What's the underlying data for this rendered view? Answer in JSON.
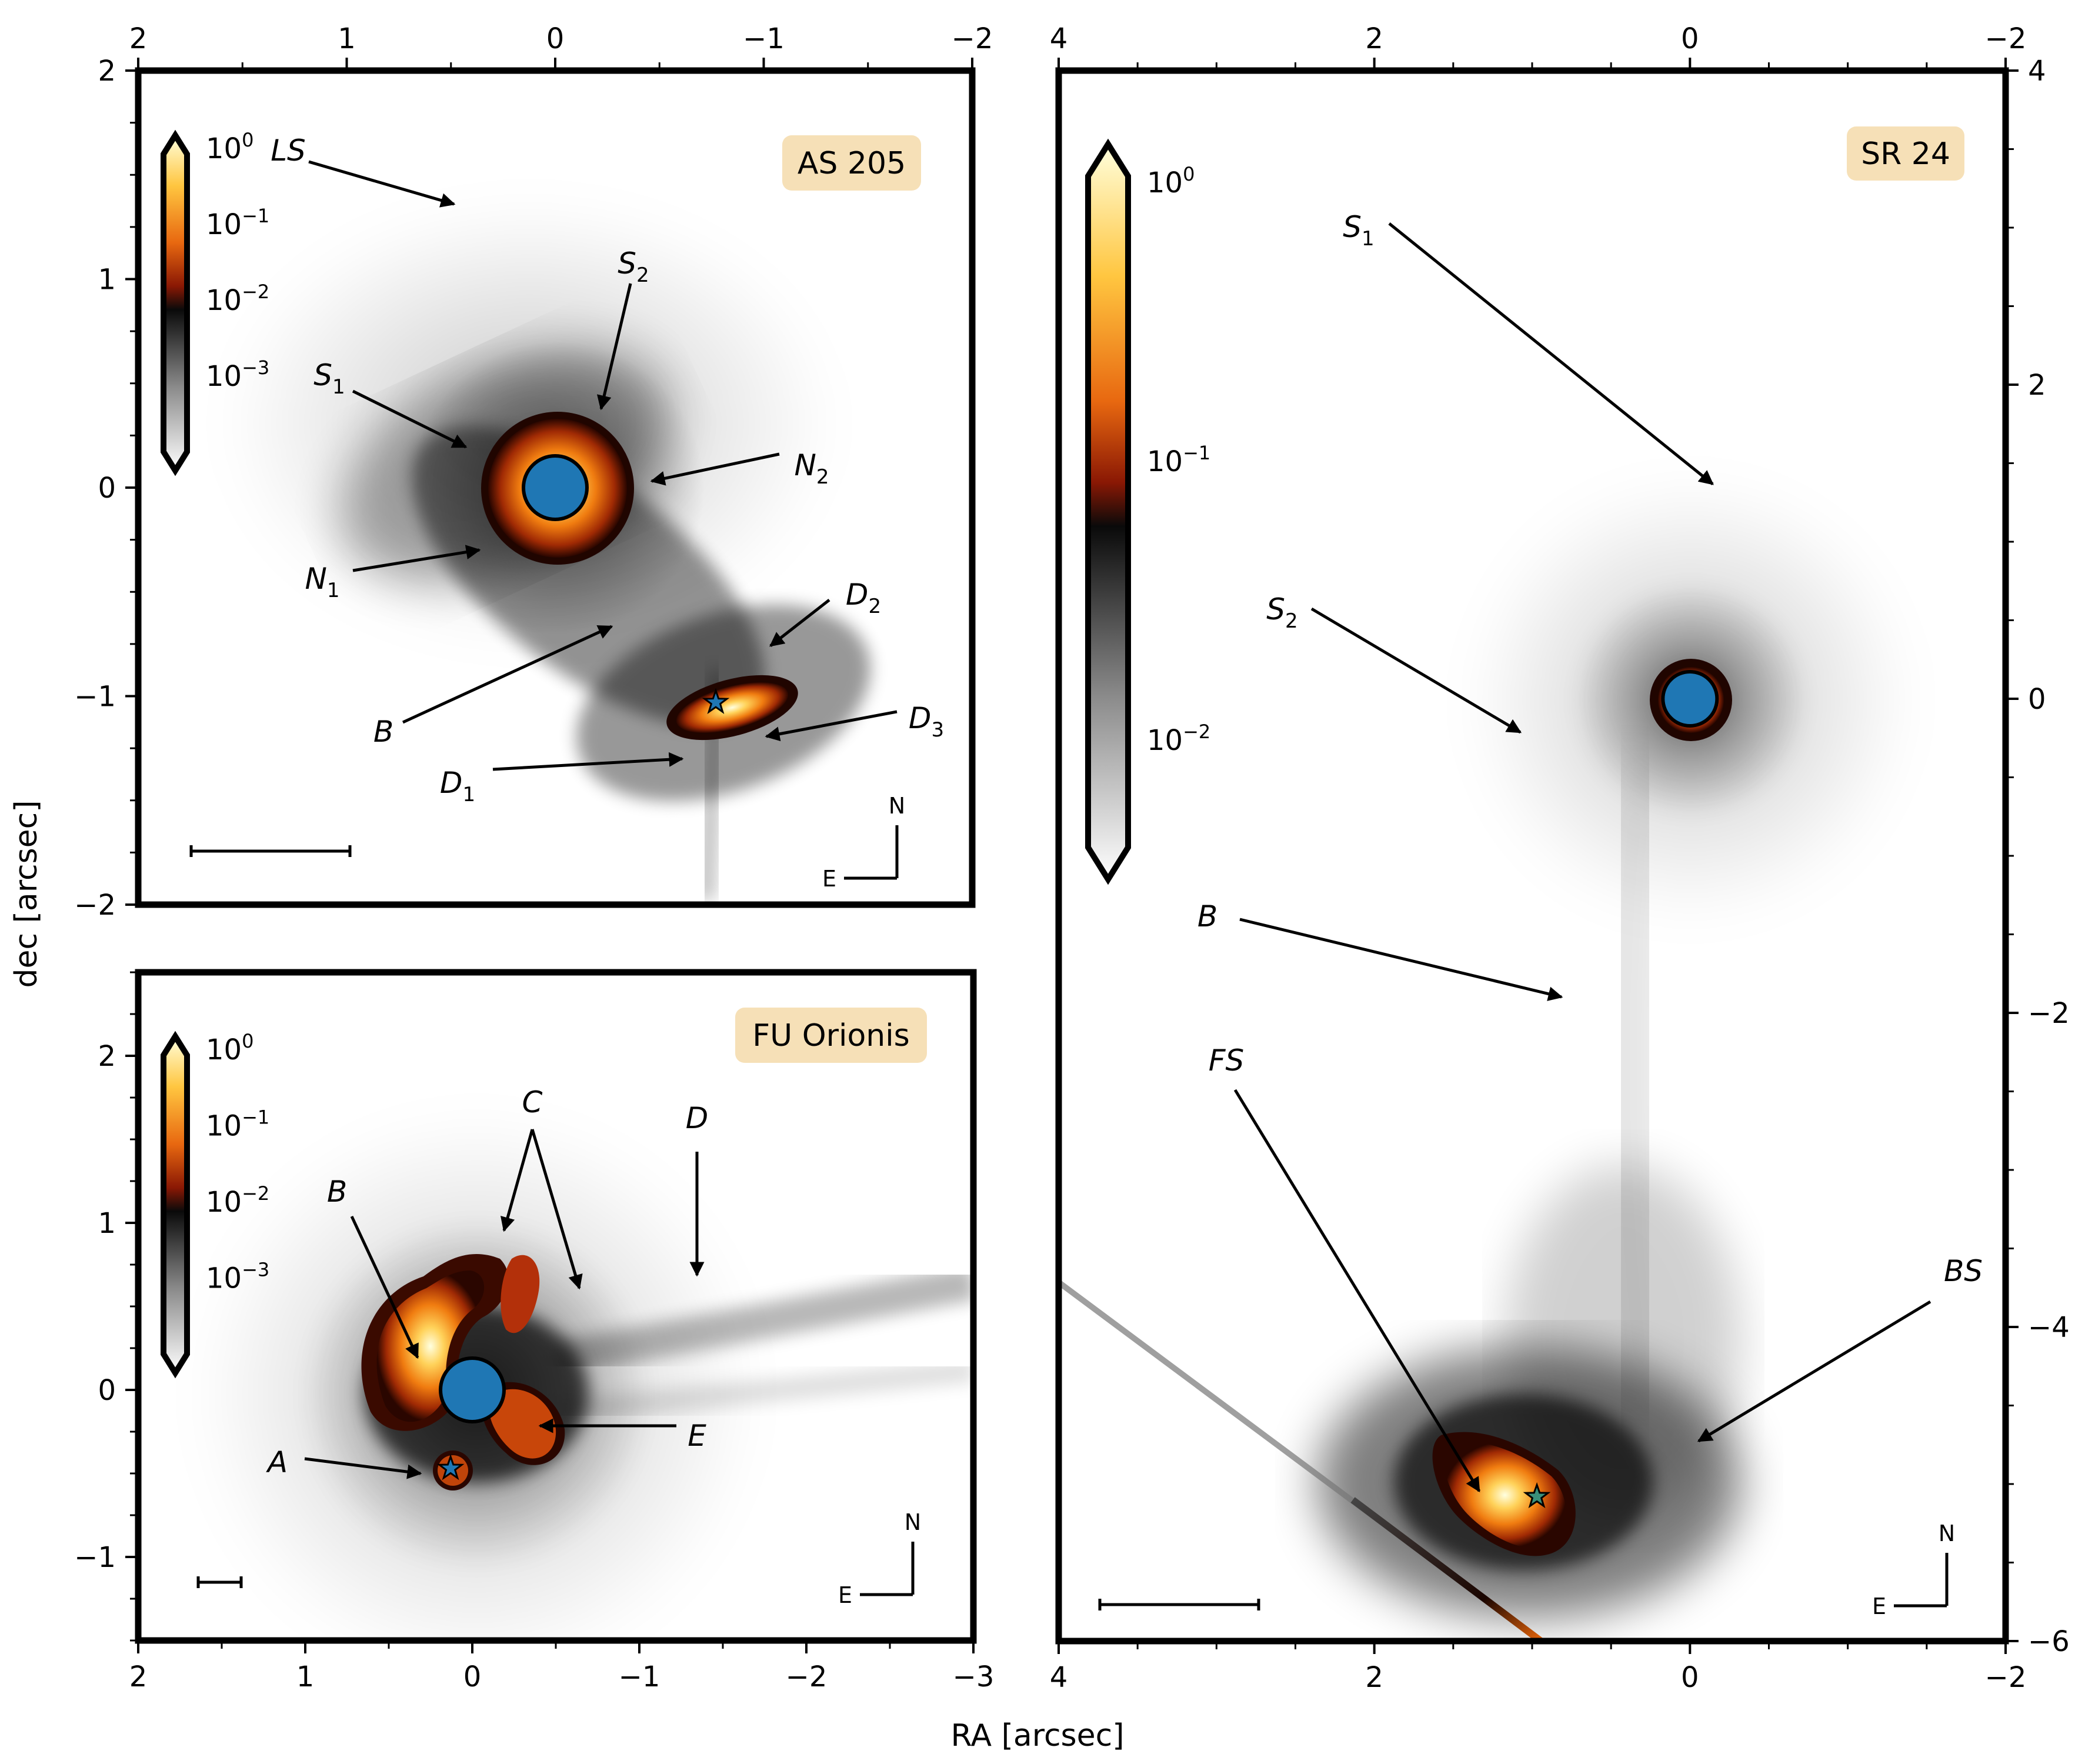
{
  "figure": {
    "xlabel": "RA [arcsec]",
    "ylabel": "dec [arcsec]"
  },
  "chart_data": [
    {
      "type": "heatmap",
      "name": "AS 205",
      "badge": "AS 205",
      "xlim": [
        2,
        -2
      ],
      "ylim": [
        -2,
        2
      ],
      "x_ticks": [
        "2",
        "1",
        "0",
        "-1",
        "-2"
      ],
      "y_ticks": [
        "2",
        "1",
        "0",
        "-1",
        "-2"
      ],
      "colorbar": {
        "scale": "log",
        "labels": [
          {
            "base": "10",
            "exp": "0"
          },
          {
            "base": "10",
            "exp": "−1"
          },
          {
            "base": "10",
            "exp": "−2"
          },
          {
            "base": "10",
            "exp": "−3"
          }
        ]
      },
      "sources": [
        {
          "marker": "circle",
          "x": 0.0,
          "y": 0.0
        },
        {
          "marker": "star",
          "x": -0.77,
          "y": -1.03
        }
      ],
      "annotations": [
        {
          "text": "LS",
          "sub": ""
        },
        {
          "text": "S",
          "sub": "2"
        },
        {
          "text": "S",
          "sub": "1"
        },
        {
          "text": "N",
          "sub": "2"
        },
        {
          "text": "N",
          "sub": "1"
        },
        {
          "text": "D",
          "sub": "2"
        },
        {
          "text": "B",
          "sub": ""
        },
        {
          "text": "D",
          "sub": "3"
        },
        {
          "text": "D",
          "sub": "1"
        }
      ],
      "compass": {
        "north": "N",
        "east": "E"
      }
    },
    {
      "type": "heatmap",
      "name": "FU Orionis",
      "badge": "FU Orionis",
      "xlim": [
        2,
        -3
      ],
      "ylim": [
        -1.5,
        2.5
      ],
      "x_ticks": [
        "2",
        "1",
        "0",
        "-1",
        "-2",
        "-3"
      ],
      "y_ticks": [
        "2",
        "1",
        "0",
        "-1"
      ],
      "colorbar": {
        "scale": "log",
        "labels": [
          {
            "base": "10",
            "exp": "0"
          },
          {
            "base": "10",
            "exp": "−1"
          },
          {
            "base": "10",
            "exp": "−2"
          },
          {
            "base": "10",
            "exp": "−3"
          }
        ]
      },
      "sources": [
        {
          "marker": "circle",
          "x": 0.0,
          "y": 0.0
        },
        {
          "marker": "star",
          "x": 0.13,
          "y": -0.47
        }
      ],
      "annotations": [
        {
          "text": "C",
          "sub": ""
        },
        {
          "text": "D",
          "sub": ""
        },
        {
          "text": "B",
          "sub": ""
        },
        {
          "text": "E",
          "sub": ""
        },
        {
          "text": "A",
          "sub": ""
        }
      ],
      "compass": {
        "north": "N",
        "east": "E"
      }
    },
    {
      "type": "heatmap",
      "name": "SR 24",
      "badge": "SR 24",
      "xlim": [
        4,
        -2
      ],
      "ylim": [
        -6,
        4
      ],
      "x_ticks": [
        "4",
        "2",
        "0",
        "-2"
      ],
      "y_ticks": [
        "4",
        "2",
        "0",
        "-2",
        "-4",
        "-6"
      ],
      "colorbar": {
        "scale": "log",
        "labels": [
          {
            "base": "10",
            "exp": "0"
          },
          {
            "base": "10",
            "exp": "−1"
          },
          {
            "base": "10",
            "exp": "−2"
          }
        ]
      },
      "sources": [
        {
          "marker": "circle",
          "x": 0.0,
          "y": 0.0
        },
        {
          "marker": "star",
          "x": 0.97,
          "y": -5.08
        }
      ],
      "annotations": [
        {
          "text": "S",
          "sub": "1"
        },
        {
          "text": "S",
          "sub": "2"
        },
        {
          "text": "B",
          "sub": ""
        },
        {
          "text": "FS",
          "sub": ""
        },
        {
          "text": "BS",
          "sub": ""
        }
      ],
      "compass": {
        "north": "N",
        "east": "E"
      }
    }
  ]
}
